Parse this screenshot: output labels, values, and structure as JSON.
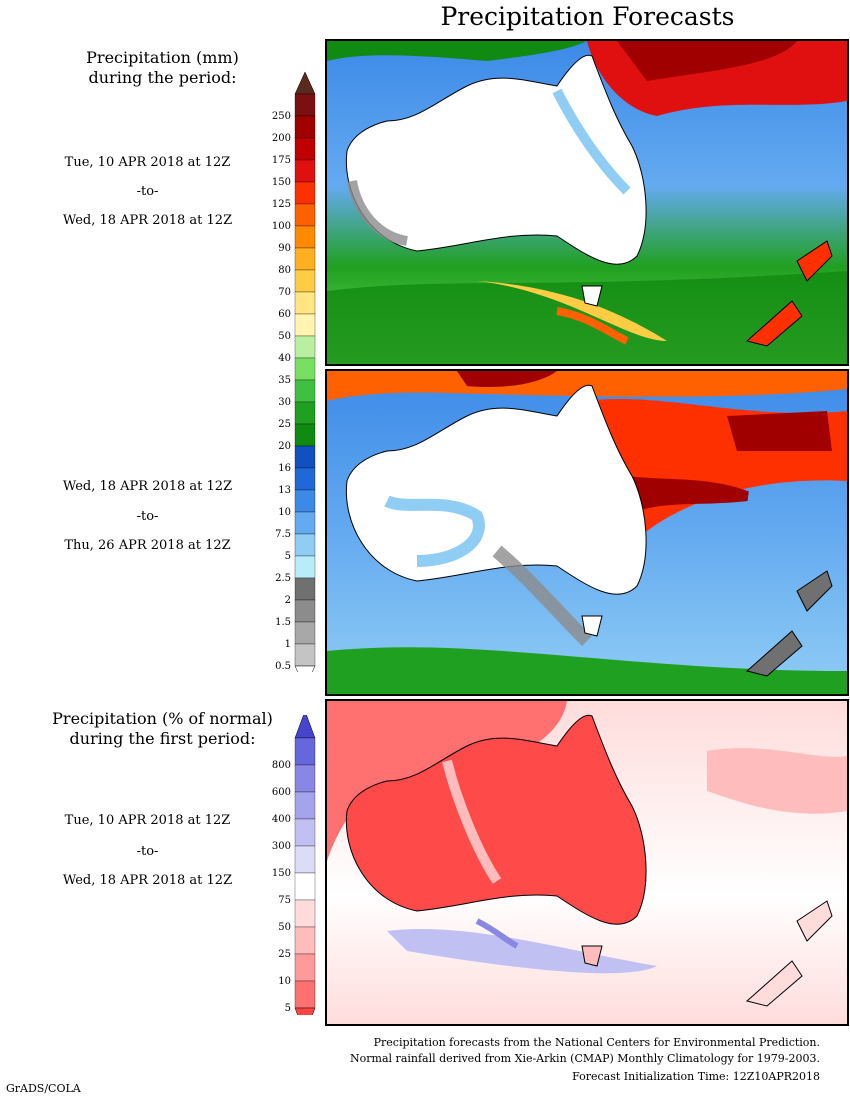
{
  "title": "Precipitation Forecasts",
  "left": {
    "precip_heading": [
      "Precipitation (mm)",
      "during the period:"
    ],
    "period1": {
      "start": "Tue, 10 APR 2018 at 12Z",
      "sep": "-to-",
      "end": "Wed, 18 APR 2018 at 12Z"
    },
    "period2": {
      "start": "Wed, 18 APR 2018 at 12Z",
      "sep": "-to-",
      "end": "Thu, 26 APR 2018 at 12Z"
    },
    "pct_heading": [
      "Precipitation (% of normal)",
      "during the first period:"
    ],
    "period3": {
      "start": "Tue, 10 APR 2018 at 12Z",
      "sep": "-to-",
      "end": "Wed, 18 APR 2018 at 12Z"
    }
  },
  "mm_colorbar": {
    "labels": [
      "250",
      "200",
      "175",
      "150",
      "125",
      "100",
      "90",
      "80",
      "70",
      "60",
      "50",
      "40",
      "35",
      "30",
      "25",
      "20",
      "16",
      "13",
      "10",
      "7.5",
      "5",
      "2.5",
      "2",
      "1.5",
      "1",
      "0.5"
    ],
    "colors": [
      "#7a1010",
      "#a00000",
      "#c00000",
      "#e01010",
      "#ff3000",
      "#ff6000",
      "#ff8a00",
      "#ffb020",
      "#ffcc44",
      "#ffe680",
      "#fff5b0",
      "#b8f0a0",
      "#78e060",
      "#40c040",
      "#20a020",
      "#108a10",
      "#1050c0",
      "#2068d8",
      "#3c8ae8",
      "#64aaf0",
      "#90cdf5",
      "#b8ecf8",
      "#707070",
      "#8c8c8c",
      "#a8a8a8",
      "#c4c4c4"
    ],
    "top_arrow": "#5a2a20",
    "bottom_arrow": "#ffffff"
  },
  "pct_colorbar": {
    "labels": [
      "800",
      "600",
      "400",
      "300",
      "150",
      "75",
      "50",
      "25",
      "10",
      "5"
    ],
    "colors": [
      "#6666dd",
      "#8888e4",
      "#a4a4ec",
      "#c0c0f2",
      "#dcdcf8",
      "#ffffff",
      "#ffdcdc",
      "#ffbcbc",
      "#ff9a9a",
      "#ff7070"
    ],
    "top_arrow": "#4444cc",
    "bottom_arrow": "#ff4444"
  },
  "footer": {
    "line1": "Precipitation forecasts from the National Centers for Environmental Prediction.",
    "line2": "Normal rainfall derived from Xie-Arkin (CMAP) Monthly Climatology for 1979-2003.",
    "line3": "Forecast Initialization Time: 12Z10APR2018"
  },
  "credit": "GrADS/COLA",
  "colors": {
    "land_dry": "#ffffff",
    "coast": "#000000",
    "pct_dry": "#ff4a4a"
  }
}
